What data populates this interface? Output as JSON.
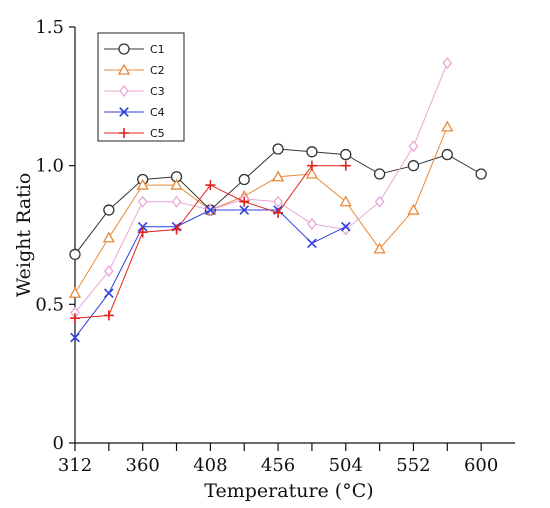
{
  "chart_data": {
    "type": "line",
    "title": "",
    "xlabel": "Temperature (°C)",
    "ylabel": "Weight Ratio",
    "xlim": [
      312,
      624
    ],
    "ylim": [
      0,
      1.5
    ],
    "x_ticks": [
      312,
      336,
      360,
      384,
      408,
      432,
      456,
      480,
      504,
      528,
      552,
      576,
      600
    ],
    "x_tick_labels": [
      "312",
      "360",
      "408",
      "456",
      "504",
      "552",
      "600"
    ],
    "y_tick_labels": [
      "0",
      "0.5",
      "1.0",
      "1.5"
    ],
    "y_tick_values": [
      0,
      0.5,
      1.0,
      1.5
    ],
    "grid": false,
    "legend_position": "top-left",
    "series": [
      {
        "name": "C1",
        "color": "#333333",
        "marker": "circle",
        "x": [
          312,
          336,
          360,
          384,
          408,
          432,
          456,
          480,
          504,
          528,
          552,
          576,
          600
        ],
        "y": [
          0.68,
          0.84,
          0.95,
          0.96,
          0.84,
          0.95,
          1.06,
          1.05,
          1.04,
          0.97,
          1.0,
          1.04,
          0.97
        ]
      },
      {
        "name": "C2",
        "color": "#e8893a",
        "marker": "triangle",
        "x": [
          312,
          336,
          360,
          384,
          408,
          432,
          456,
          480,
          504,
          528,
          552,
          576
        ],
        "y": [
          0.54,
          0.74,
          0.93,
          0.93,
          0.84,
          0.89,
          0.96,
          0.97,
          0.87,
          0.7,
          0.84,
          1.14
        ]
      },
      {
        "name": "C3",
        "color": "#e8a6d6",
        "marker": "diamond",
        "x": [
          312,
          336,
          360,
          384,
          408,
          432,
          456,
          480,
          504,
          528,
          552,
          576
        ],
        "y": [
          0.47,
          0.62,
          0.87,
          0.87,
          0.84,
          0.88,
          0.87,
          0.79,
          0.77,
          0.87,
          1.07,
          1.37
        ]
      },
      {
        "name": "C4",
        "color": "#2f3fe0",
        "marker": "x",
        "x": [
          312,
          336,
          360,
          384,
          408,
          432,
          456,
          480,
          504
        ],
        "y": [
          0.38,
          0.54,
          0.78,
          0.78,
          0.84,
          0.84,
          0.84,
          0.72,
          0.78
        ]
      },
      {
        "name": "C5",
        "color": "#e3201b",
        "marker": "plus",
        "x": [
          312,
          336,
          360,
          384,
          408,
          432,
          456,
          480,
          504
        ],
        "y": [
          0.45,
          0.46,
          0.76,
          0.77,
          0.93,
          0.87,
          0.83,
          1.0,
          1.0
        ]
      }
    ]
  }
}
